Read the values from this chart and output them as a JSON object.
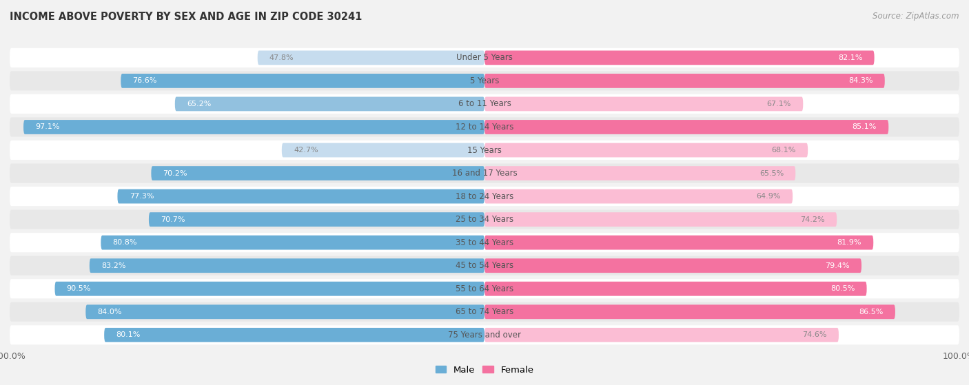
{
  "title": "INCOME ABOVE POVERTY BY SEX AND AGE IN ZIP CODE 30241",
  "source": "Source: ZipAtlas.com",
  "categories": [
    "Under 5 Years",
    "5 Years",
    "6 to 11 Years",
    "12 to 14 Years",
    "15 Years",
    "16 and 17 Years",
    "18 to 24 Years",
    "25 to 34 Years",
    "35 to 44 Years",
    "45 to 54 Years",
    "55 to 64 Years",
    "65 to 74 Years",
    "75 Years and over"
  ],
  "male_values": [
    47.8,
    76.6,
    65.2,
    97.1,
    42.7,
    70.2,
    77.3,
    70.7,
    80.8,
    83.2,
    90.5,
    84.0,
    80.1
  ],
  "female_values": [
    82.1,
    84.3,
    67.1,
    85.1,
    68.1,
    65.5,
    64.9,
    74.2,
    81.9,
    79.4,
    80.5,
    86.5,
    74.6
  ],
  "male_color_dark": "#6aaed6",
  "male_color_light": "#c6dcee",
  "female_color_dark": "#f472a0",
  "female_color_light": "#fbbdd4",
  "background_color": "#f2f2f2",
  "row_color_even": "#ffffff",
  "row_color_odd": "#e8e8e8",
  "bar_height": 0.62,
  "title_fontsize": 10.5,
  "label_fontsize": 8.0,
  "category_fontsize": 8.5,
  "source_fontsize": 8.5,
  "tick_fontsize": 9.0
}
